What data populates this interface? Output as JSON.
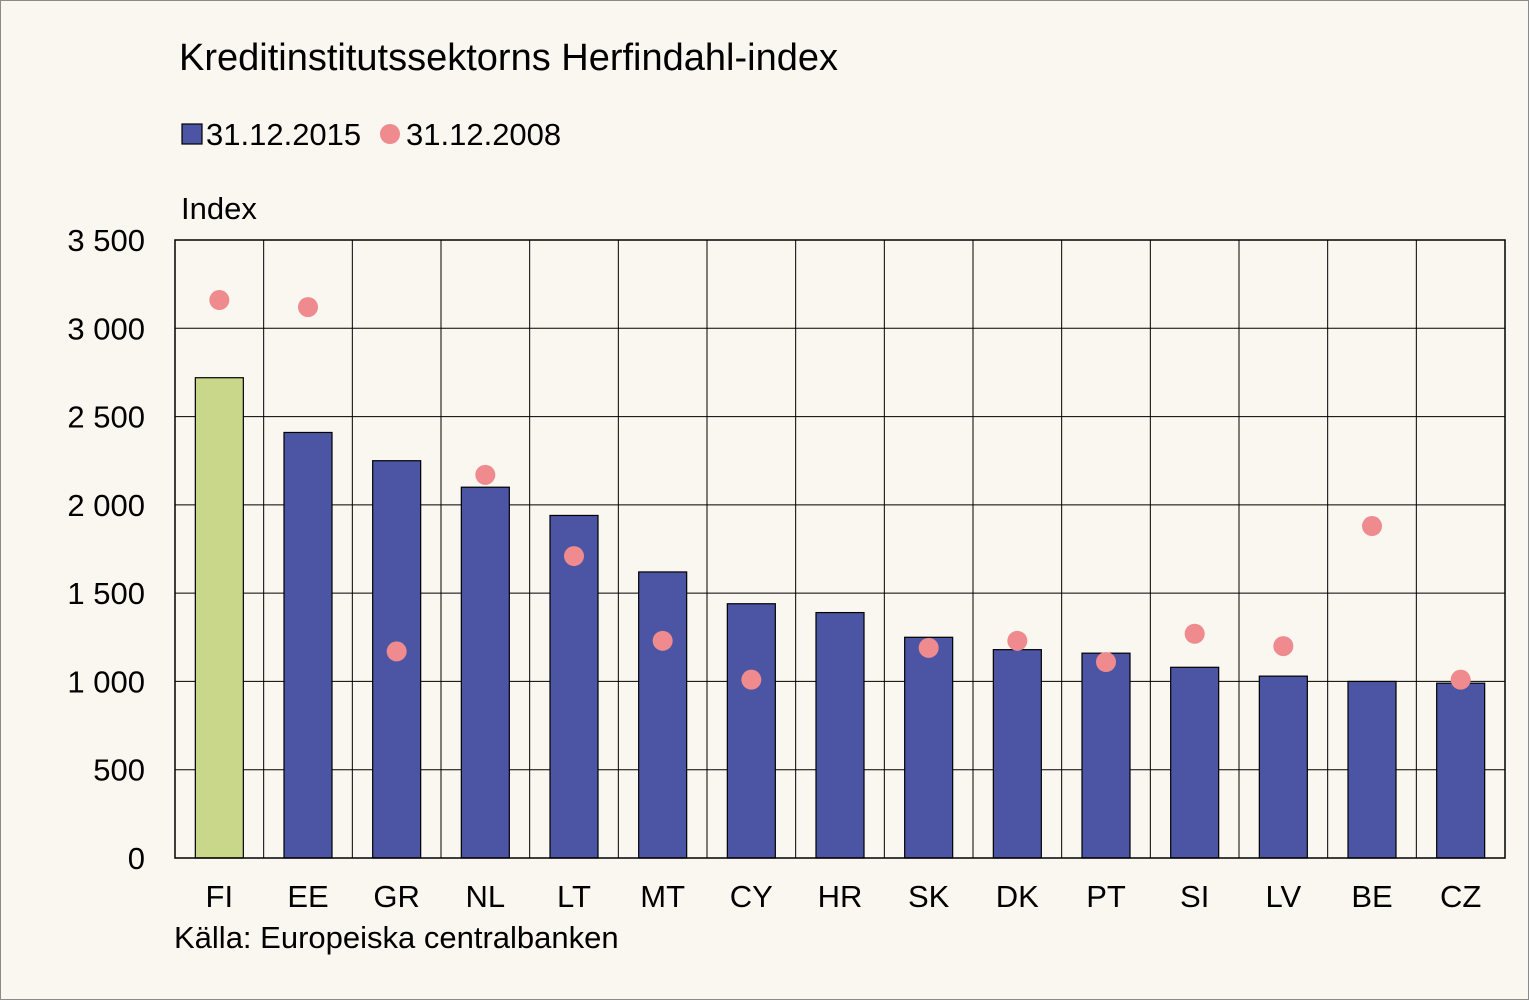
{
  "chart_data": {
    "type": "bar",
    "title": "Kreditinstitutssektorns Herfindahl-index",
    "ylabel": "Index",
    "xlabel": "",
    "source": "Källa: Europeiska centralbanken",
    "ylim": [
      0,
      3500
    ],
    "yticks": [
      0,
      500,
      1000,
      1500,
      2000,
      2500,
      3000,
      3500
    ],
    "ytick_labels": [
      "0",
      "500",
      "1 000",
      "1 500",
      "2 000",
      "2 500",
      "3 000",
      "3 500"
    ],
    "grid": true,
    "legend_position": "top-left",
    "categories": [
      "FI",
      "EE",
      "GR",
      "NL",
      "LT",
      "MT",
      "CY",
      "HR",
      "SK",
      "DK",
      "PT",
      "SI",
      "LV",
      "BE",
      "CZ"
    ],
    "highlight_category": "FI",
    "series": [
      {
        "name": "31.12.2015",
        "kind": "bar",
        "color": "#4c55a3",
        "highlight_color": "#c9d78a",
        "values": [
          2720,
          2410,
          2250,
          2100,
          1940,
          1620,
          1440,
          1390,
          1250,
          1180,
          1160,
          1080,
          1030,
          1000,
          990
        ]
      },
      {
        "name": "31.12.2008",
        "kind": "point",
        "color": "#ef8a8e",
        "values": [
          3160,
          3120,
          1170,
          2170,
          1710,
          1230,
          1010,
          null,
          1190,
          1230,
          1110,
          1270,
          1200,
          1880,
          1010
        ]
      }
    ]
  }
}
